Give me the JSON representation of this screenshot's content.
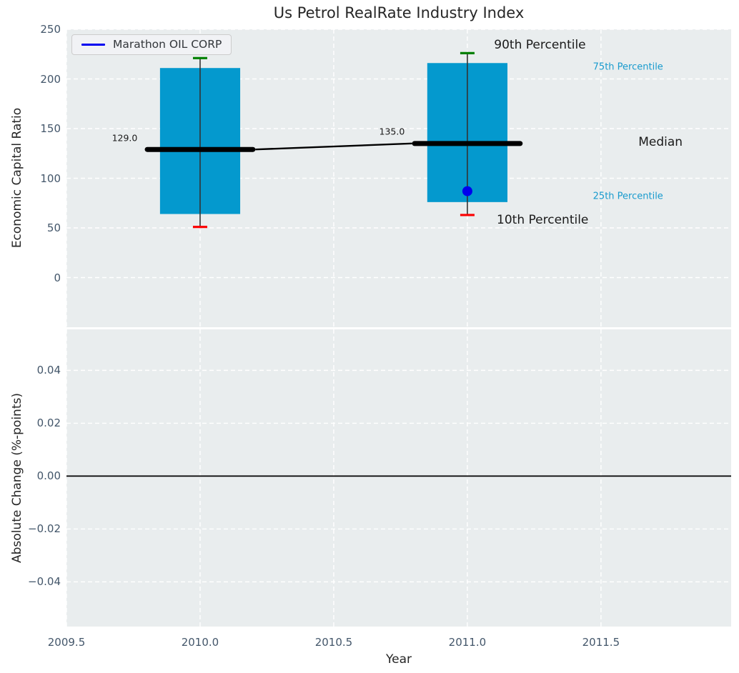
{
  "figure": {
    "title": "Us Petrol RealRate Industry Index",
    "axes_background": "#e9edee",
    "grid_color": "#ffffff",
    "tick_color": "#43566a",
    "text_color": "#262626"
  },
  "legend": {
    "label": "Marathon OIL CORP",
    "line_color": "#0000f0"
  },
  "chart_data": [
    {
      "type": "box",
      "title": "Us Petrol RealRate Industry Index",
      "ylabel": "Economic Capital Ratio",
      "xlim": [
        2009.5,
        2011.987
      ],
      "ylim": [
        -50,
        250
      ],
      "grid": true,
      "legend_position": "upper-left",
      "yticks": [
        {
          "v": 0,
          "label": "0"
        },
        {
          "v": 50,
          "label": "50"
        },
        {
          "v": 100,
          "label": "100"
        },
        {
          "v": 150,
          "label": "150"
        },
        {
          "v": 200,
          "label": "200"
        },
        {
          "v": 250,
          "label": "250"
        }
      ],
      "box_color": "#0499ce",
      "whisker_color": "#333333",
      "cap90_color": "#008000",
      "cap10_color": "#fb0000",
      "median_color": "#000000",
      "boxes": [
        {
          "x": 2010,
          "p10": 51,
          "p25": 64,
          "median": 129,
          "p75": 211,
          "p90": 221,
          "median_label": "129.0"
        },
        {
          "x": 2011,
          "p10": 63,
          "p25": 76,
          "median": 135,
          "p75": 216,
          "p90": 226,
          "median_label": "135.0"
        }
      ],
      "median_trend": [
        {
          "x": 2010,
          "y": 129
        },
        {
          "x": 2011,
          "y": 135
        }
      ],
      "company_series": {
        "name": "Marathon OIL CORP",
        "color": "#0000ee",
        "points": [
          {
            "x": 2011,
            "y": 87
          }
        ]
      },
      "annotations": [
        {
          "text": "90th Percentile",
          "x": 2011.1,
          "y": 234,
          "color": "#1a1a1a",
          "size": 17
        },
        {
          "text": "75th Percentile",
          "x": 2011.47,
          "y": 212,
          "color": "#199bce",
          "size": 13
        },
        {
          "text": "Median",
          "x": 2011.64,
          "y": 136,
          "color": "#1a1a1a",
          "size": 17
        },
        {
          "text": "25th Percentile",
          "x": 2011.47,
          "y": 82,
          "color": "#199bce",
          "size": 13
        },
        {
          "text": "10th Percentile",
          "x": 2011.11,
          "y": 58,
          "color": "#1a1a1a",
          "size": 17
        },
        {
          "text": "129.0",
          "x": 2009.67,
          "y": 141,
          "color": "#1a1a1a",
          "size": 12.5
        },
        {
          "text": "135.0",
          "x": 2010.67,
          "y": 147,
          "color": "#1a1a1a",
          "size": 12.5
        }
      ]
    },
    {
      "type": "line",
      "ylabel": "Absolute Change (%-points)",
      "xlabel": "Year",
      "xlim": [
        2009.5,
        2011.987
      ],
      "ylim": [
        -0.0569,
        0.0555
      ],
      "grid": true,
      "yticks": [
        {
          "v": -0.04,
          "label": "−0.04"
        },
        {
          "v": -0.02,
          "label": "−0.02"
        },
        {
          "v": 0.0,
          "label": "0.00"
        },
        {
          "v": 0.02,
          "label": "0.02"
        },
        {
          "v": 0.04,
          "label": "0.04"
        }
      ],
      "xticks": [
        {
          "v": 2009.5,
          "label": "2009.5"
        },
        {
          "v": 2010.0,
          "label": "2010.0"
        },
        {
          "v": 2010.5,
          "label": "2010.5"
        },
        {
          "v": 2011.0,
          "label": "2011.0"
        },
        {
          "v": 2011.5,
          "label": "2011.5"
        }
      ],
      "zero_line": {
        "y": 0.0,
        "color": "#000000"
      },
      "series": []
    }
  ]
}
